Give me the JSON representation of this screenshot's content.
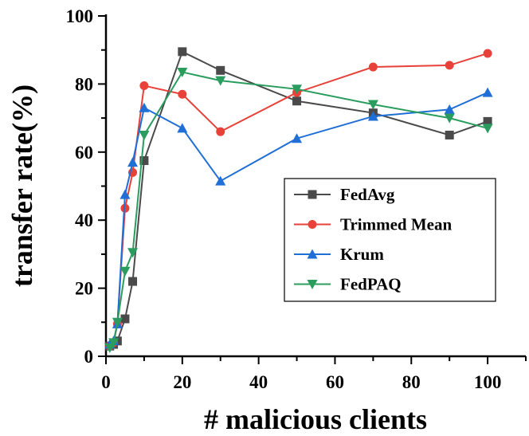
{
  "chart_data": {
    "type": "line",
    "xlabel": "# malicious clients",
    "ylabel": "transfer rate(%)",
    "xlim": [
      0,
      110
    ],
    "ylim": [
      0,
      100
    ],
    "xticks": [
      0,
      20,
      40,
      60,
      80,
      100
    ],
    "yticks": [
      0,
      20,
      40,
      60,
      80,
      100
    ],
    "grid": false,
    "legend_position": "center-right",
    "x": [
      1,
      2,
      3,
      5,
      7,
      10,
      20,
      30,
      50,
      70,
      90,
      100
    ],
    "series": [
      {
        "name": "FedAvg",
        "color": "#4a4a4a",
        "marker": "square",
        "values": [
          3,
          3.5,
          4.5,
          11,
          22,
          57.5,
          89.5,
          84,
          75,
          71.5,
          65,
          69
        ]
      },
      {
        "name": "Trimmed Mean",
        "color": "#e8413a",
        "marker": "circle",
        "values": [
          3,
          4,
          9.5,
          43.5,
          54,
          79.5,
          77,
          66,
          77.5,
          85,
          85.5,
          89
        ]
      },
      {
        "name": "Krum",
        "color": "#1f6fd6",
        "marker": "triangle-up",
        "values": [
          3.5,
          4.5,
          9.5,
          47.5,
          57,
          73,
          67,
          51.5,
          64,
          70.5,
          72.5,
          77.5
        ]
      },
      {
        "name": "FedPAQ",
        "color": "#2a9c5e",
        "marker": "triangle-down",
        "values": [
          2.5,
          4,
          10,
          25,
          30.5,
          65,
          83.5,
          81,
          78.5,
          74,
          70,
          67
        ]
      }
    ]
  }
}
